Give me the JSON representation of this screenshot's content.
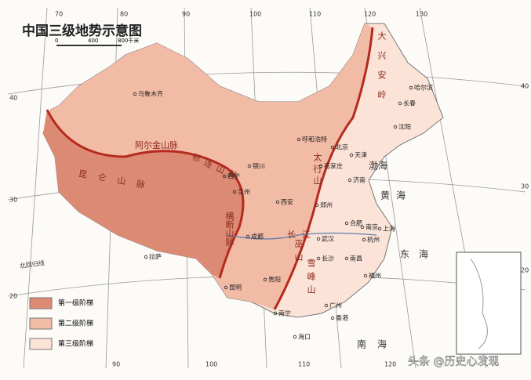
{
  "title": "中国三级地势示意图",
  "scale": [
    "0",
    "400",
    "800千米"
  ],
  "graticule": {
    "top": [
      70,
      80,
      90,
      100,
      110,
      120,
      130
    ],
    "bottom": [
      90,
      100,
      110,
      120
    ],
    "left": [
      40,
      30,
      20
    ],
    "right": [
      40,
      30,
      20
    ]
  },
  "tropic": "北回归线",
  "legend": [
    "第一级阶梯",
    "第二级阶梯",
    "第三级阶梯"
  ],
  "mountains": [
    "昆仑山脉",
    "阿尔金山脉",
    "祁连山脉",
    "横断山脉",
    "大兴安岭",
    "太行山",
    "巫山",
    "雪峰山"
  ],
  "river": "长江",
  "seas": [
    "渤海",
    "黄海",
    "东海",
    "南海"
  ],
  "cities": [
    "乌鲁木齐",
    "呼和浩特",
    "北京",
    "天津",
    "石家庄",
    "济南",
    "银川",
    "西宁",
    "兰州",
    "西安",
    "郑州",
    "成都",
    "武汉",
    "合肥",
    "南京",
    "杭州",
    "上海",
    "长沙",
    "南昌",
    "福州",
    "贵阳",
    "昆明",
    "南宁",
    "广州",
    "拉萨",
    "哈尔滨",
    "长春",
    "沈阳",
    "香港",
    "海口"
  ],
  "watermark": "头条 @历史心发现"
}
